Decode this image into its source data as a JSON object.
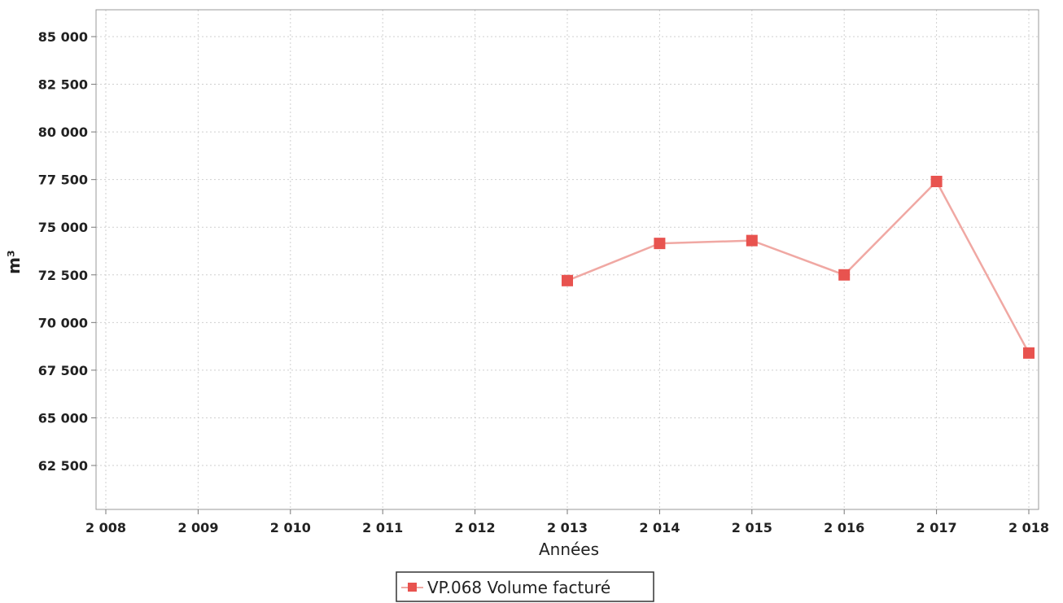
{
  "chart_data": {
    "type": "line",
    "title": "",
    "xlabel": "Années",
    "ylabel": "m³",
    "xlim": [
      2008,
      2018
    ],
    "ylim": [
      60250,
      86500
    ],
    "x_ticks": [
      2008,
      2009,
      2010,
      2011,
      2012,
      2013,
      2014,
      2015,
      2016,
      2017,
      2018
    ],
    "x_tick_labels": [
      "2 008",
      "2 009",
      "2 010",
      "2 011",
      "2 012",
      "2 013",
      "2 014",
      "2 015",
      "2 016",
      "2 017",
      "2 018"
    ],
    "y_ticks": [
      62500,
      65000,
      67500,
      70000,
      72500,
      75000,
      77500,
      80000,
      82500,
      85000
    ],
    "y_tick_labels": [
      "62 500",
      "65 000",
      "67 500",
      "70 000",
      "72 500",
      "75 000",
      "77 500",
      "80 000",
      "82 500",
      "85 000"
    ],
    "grid": true,
    "legend_position": "bottom-center",
    "series": [
      {
        "name": "VP.068 Volume facturé",
        "color": "#e8534f",
        "line_color": "#f0a8a3",
        "marker": "square",
        "x": [
          2013,
          2014,
          2015,
          2016,
          2017,
          2018
        ],
        "values": [
          72200,
          74150,
          74300,
          72500,
          77400,
          68400
        ]
      }
    ]
  }
}
